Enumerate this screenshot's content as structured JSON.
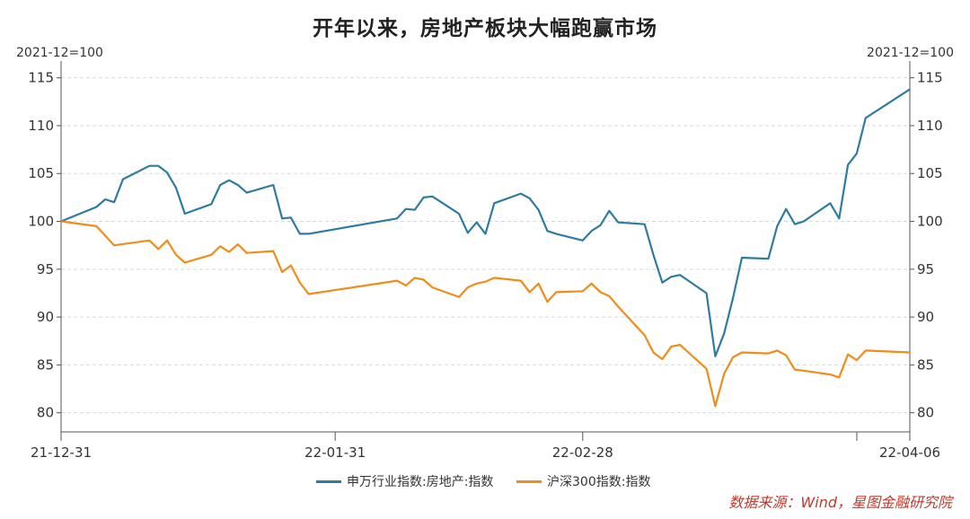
{
  "chart_data": {
    "type": "line",
    "title": "开年以来，房地产板块大幅跑赢市场",
    "ylabel_left": "2021-12=100",
    "ylabel_right": "2021-12=100",
    "ylim": [
      78,
      116
    ],
    "yticks": [
      80,
      85,
      90,
      95,
      100,
      105,
      110,
      115
    ],
    "xlim": [
      "2021-12-31",
      "2022-04-06"
    ],
    "xtick_labels": [
      "21-12-31",
      "22-01-31",
      "22-02-28",
      "22-04-06"
    ],
    "xtick_dates": [
      "2021-12-31",
      "2022-01-31",
      "2022-02-28",
      "2022-04-06"
    ],
    "grid": true,
    "legend_position": "bottom",
    "series": [
      {
        "name": "申万行业指数:房地产:指数",
        "color": "#2e7ca1",
        "points": [
          [
            "2021-12-31",
            100.0
          ],
          [
            "2022-01-04",
            101.5
          ],
          [
            "2022-01-05",
            102.3
          ],
          [
            "2022-01-06",
            102.0
          ],
          [
            "2022-01-07",
            104.4
          ],
          [
            "2022-01-10",
            105.8
          ],
          [
            "2022-01-11",
            105.8
          ],
          [
            "2022-01-12",
            105.1
          ],
          [
            "2022-01-13",
            103.5
          ],
          [
            "2022-01-14",
            100.8
          ],
          [
            "2022-01-17",
            101.8
          ],
          [
            "2022-01-18",
            103.8
          ],
          [
            "2022-01-19",
            104.3
          ],
          [
            "2022-01-20",
            103.8
          ],
          [
            "2022-01-21",
            103.0
          ],
          [
            "2022-01-24",
            103.8
          ],
          [
            "2022-01-25",
            100.3
          ],
          [
            "2022-01-26",
            100.4
          ],
          [
            "2022-01-27",
            98.7
          ],
          [
            "2022-01-28",
            98.7
          ],
          [
            "2022-02-07",
            100.3
          ],
          [
            "2022-02-08",
            101.3
          ],
          [
            "2022-02-09",
            101.2
          ],
          [
            "2022-02-10",
            102.5
          ],
          [
            "2022-02-11",
            102.6
          ],
          [
            "2022-02-14",
            100.8
          ],
          [
            "2022-02-15",
            98.8
          ],
          [
            "2022-02-16",
            99.9
          ],
          [
            "2022-02-17",
            98.7
          ],
          [
            "2022-02-18",
            101.9
          ],
          [
            "2022-02-21",
            102.9
          ],
          [
            "2022-02-22",
            102.4
          ],
          [
            "2022-02-23",
            101.2
          ],
          [
            "2022-02-24",
            99.0
          ],
          [
            "2022-02-25",
            98.7
          ],
          [
            "2022-02-28",
            98.0
          ],
          [
            "2022-03-01",
            99.0
          ],
          [
            "2022-03-02",
            99.6
          ],
          [
            "2022-03-03",
            101.1
          ],
          [
            "2022-03-04",
            99.9
          ],
          [
            "2022-03-07",
            99.7
          ],
          [
            "2022-03-08",
            96.5
          ],
          [
            "2022-03-09",
            93.6
          ],
          [
            "2022-03-10",
            94.2
          ],
          [
            "2022-03-11",
            94.4
          ],
          [
            "2022-03-14",
            92.5
          ],
          [
            "2022-03-15",
            85.9
          ],
          [
            "2022-03-16",
            88.3
          ],
          [
            "2022-03-17",
            92.0
          ],
          [
            "2022-03-18",
            96.2
          ],
          [
            "2022-03-21",
            96.1
          ],
          [
            "2022-03-22",
            99.5
          ],
          [
            "2022-03-23",
            101.3
          ],
          [
            "2022-03-24",
            99.7
          ],
          [
            "2022-03-25",
            100.0
          ],
          [
            "2022-03-28",
            101.9
          ],
          [
            "2022-03-29",
            100.3
          ],
          [
            "2022-03-30",
            105.9
          ],
          [
            "2022-03-31",
            107.1
          ],
          [
            "2022-04-01",
            110.8
          ],
          [
            "2022-04-06",
            113.8
          ]
        ]
      },
      {
        "name": "沪深300指数:指数",
        "color": "#f08c1a",
        "points": [
          [
            "2021-12-31",
            100.0
          ],
          [
            "2022-01-04",
            99.5
          ],
          [
            "2022-01-06",
            97.5
          ],
          [
            "2022-01-10",
            98.0
          ],
          [
            "2022-01-11",
            97.1
          ],
          [
            "2022-01-12",
            98.0
          ],
          [
            "2022-01-13",
            96.5
          ],
          [
            "2022-01-14",
            95.7
          ],
          [
            "2022-01-17",
            96.5
          ],
          [
            "2022-01-18",
            97.4
          ],
          [
            "2022-01-19",
            96.8
          ],
          [
            "2022-01-20",
            97.6
          ],
          [
            "2022-01-21",
            96.7
          ],
          [
            "2022-01-24",
            96.9
          ],
          [
            "2022-01-25",
            94.7
          ],
          [
            "2022-01-26",
            95.4
          ],
          [
            "2022-01-27",
            93.6
          ],
          [
            "2022-01-28",
            92.4
          ],
          [
            "2022-02-07",
            93.8
          ],
          [
            "2022-02-08",
            93.3
          ],
          [
            "2022-02-09",
            94.1
          ],
          [
            "2022-02-10",
            93.9
          ],
          [
            "2022-02-11",
            93.1
          ],
          [
            "2022-02-14",
            92.1
          ],
          [
            "2022-02-15",
            93.1
          ],
          [
            "2022-02-16",
            93.5
          ],
          [
            "2022-02-17",
            93.7
          ],
          [
            "2022-02-18",
            94.1
          ],
          [
            "2022-02-21",
            93.8
          ],
          [
            "2022-02-22",
            92.6
          ],
          [
            "2022-02-23",
            93.5
          ],
          [
            "2022-02-24",
            91.6
          ],
          [
            "2022-02-25",
            92.6
          ],
          [
            "2022-02-28",
            92.7
          ],
          [
            "2022-03-01",
            93.5
          ],
          [
            "2022-03-02",
            92.6
          ],
          [
            "2022-03-03",
            92.2
          ],
          [
            "2022-03-04",
            91.1
          ],
          [
            "2022-03-07",
            88.1
          ],
          [
            "2022-03-08",
            86.3
          ],
          [
            "2022-03-09",
            85.6
          ],
          [
            "2022-03-10",
            86.9
          ],
          [
            "2022-03-11",
            87.1
          ],
          [
            "2022-03-14",
            84.6
          ],
          [
            "2022-03-15",
            80.7
          ],
          [
            "2022-03-16",
            84.1
          ],
          [
            "2022-03-17",
            85.8
          ],
          [
            "2022-03-18",
            86.3
          ],
          [
            "2022-03-21",
            86.2
          ],
          [
            "2022-03-22",
            86.5
          ],
          [
            "2022-03-23",
            86.0
          ],
          [
            "2022-03-24",
            84.5
          ],
          [
            "2022-03-25",
            84.4
          ],
          [
            "2022-03-28",
            84.0
          ],
          [
            "2022-03-29",
            83.7
          ],
          [
            "2022-03-30",
            86.1
          ],
          [
            "2022-03-31",
            85.5
          ],
          [
            "2022-04-01",
            86.5
          ],
          [
            "2022-04-06",
            86.3
          ]
        ]
      }
    ]
  },
  "source_note": "数据来源：Wind，星图金融研究院"
}
